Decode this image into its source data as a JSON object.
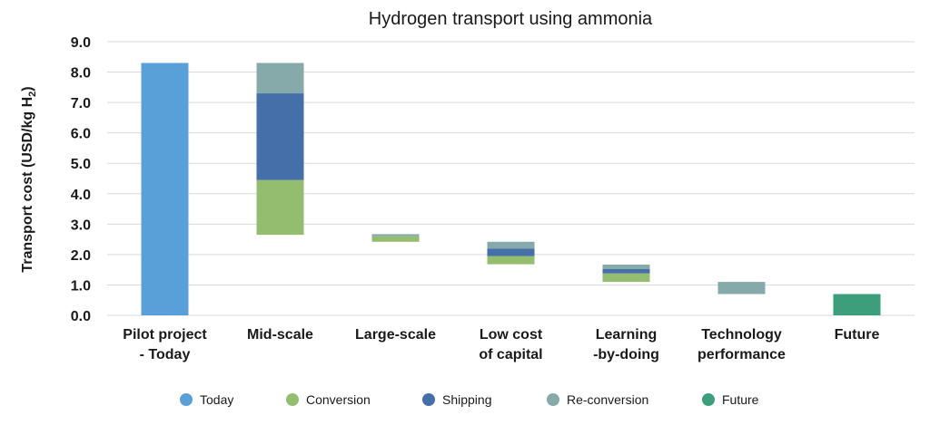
{
  "chart_data": {
    "type": "bar",
    "subtype": "waterfall",
    "title": "Hydrogen transport using ammonia",
    "ylabel_main": "Transport cost (USD/kg H",
    "ylabel_sub": "2",
    "ylabel_end": ")",
    "ylim": [
      0,
      9
    ],
    "yticks": [
      "0.0",
      "1.0",
      "2.0",
      "3.0",
      "4.0",
      "5.0",
      "6.0",
      "7.0",
      "8.0",
      "9.0"
    ],
    "grid": true,
    "legend_position": "bottom",
    "categories": [
      {
        "label": [
          "Pilot project",
          "- Today"
        ]
      },
      {
        "label": [
          "Mid-scale"
        ]
      },
      {
        "label": [
          "Large-scale"
        ]
      },
      {
        "label": [
          "Low cost",
          "of capital"
        ]
      },
      {
        "label": [
          "Learning",
          "-by-doing"
        ]
      },
      {
        "label": [
          "Technology",
          "performance"
        ]
      },
      {
        "label": [
          "Future"
        ]
      }
    ],
    "series": [
      {
        "name": "Today",
        "color": "#5aa0d8"
      },
      {
        "name": "Conversion",
        "color": "#95bd6f"
      },
      {
        "name": "Shipping",
        "color": "#456fa8"
      },
      {
        "name": "Re-conversion",
        "color": "#85aaa9"
      },
      {
        "name": "Future",
        "color": "#3d9e7c"
      }
    ],
    "segments": [
      {
        "category": 0,
        "series": "Today",
        "from": 0,
        "to": 8.3
      },
      {
        "category": 1,
        "series": "Conversion",
        "from": 2.65,
        "to": 4.45
      },
      {
        "category": 1,
        "series": "Shipping",
        "from": 4.45,
        "to": 7.3
      },
      {
        "category": 1,
        "series": "Re-conversion",
        "from": 7.3,
        "to": 8.3
      },
      {
        "category": 2,
        "series": "Conversion",
        "from": 2.42,
        "to": 2.6
      },
      {
        "category": 2,
        "series": "Re-conversion",
        "from": 2.6,
        "to": 2.67
      },
      {
        "category": 3,
        "series": "Conversion",
        "from": 1.68,
        "to": 1.95
      },
      {
        "category": 3,
        "series": "Shipping",
        "from": 1.95,
        "to": 2.2
      },
      {
        "category": 3,
        "series": "Re-conversion",
        "from": 2.2,
        "to": 2.42
      },
      {
        "category": 4,
        "series": "Conversion",
        "from": 1.1,
        "to": 1.38
      },
      {
        "category": 4,
        "series": "Shipping",
        "from": 1.38,
        "to": 1.52
      },
      {
        "category": 4,
        "series": "Re-conversion",
        "from": 1.52,
        "to": 1.67
      },
      {
        "category": 5,
        "series": "Re-conversion",
        "from": 0.7,
        "to": 1.1
      },
      {
        "category": 6,
        "series": "Future",
        "from": 0,
        "to": 0.7
      }
    ]
  }
}
